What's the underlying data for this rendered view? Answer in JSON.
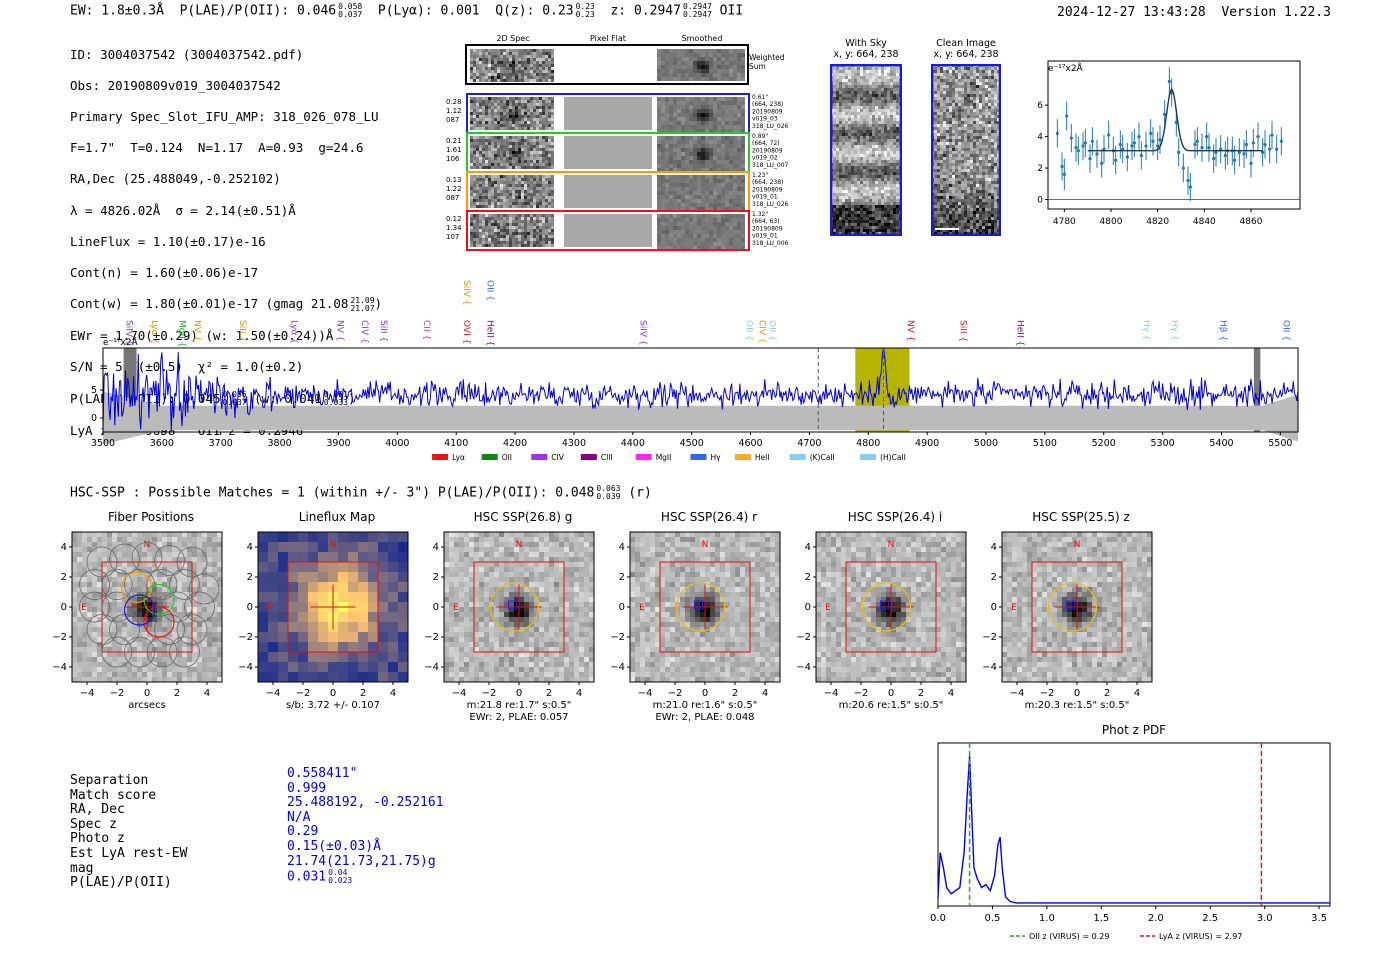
{
  "header": {
    "ew": "EW: 1.8±0.3Å",
    "plae_label": "P(LAE)/P(OII): 0.046",
    "plae_hi": "0.058",
    "plae_lo": "0.037",
    "plya": "P(Lyα): 0.001",
    "qz_label": "Q(z): 0.23",
    "qz_hi": "0.23",
    "qz_lo": "0.23",
    "z_label": "z: 0.2947",
    "z_hi": "0.2947",
    "z_lo": "0.2947",
    "z_line": "OII",
    "datetime": "2024-12-27 13:43:28",
    "version": "Version 1.22.3"
  },
  "info": {
    "id": "ID: 3004037542 (3004037542.pdf)",
    "obs": "Obs: 20190809v019_3004037542",
    "primary": "Primary Spec_Slot_IFU_AMP: 318_026_078_LU",
    "params": "F=1.7\"  T=0.124  N=1.17  A=0.93  g=24.6",
    "radec": "RA,Dec (25.488049,-0.252102)",
    "lambda": "λ = 4826.02Å  σ = 2.14(±0.51)Å",
    "lineflux": "LineFlux = 1.10(±0.17)e-16",
    "contn": "Cont(n) = 1.60(±0.06)e-17",
    "contw_label": "Cont(w) = 1.80(±0.01)e-17 (gmag 21.08",
    "contw_hi": "21.09",
    "contw_lo": "21.07",
    "contw_close": ")",
    "ewr": "EWr = 1.70(±0.29) (w: 1.50(±0.24))Å",
    "sn": "S/N = 5.7(±0.5)  χ² = 1.0(±0.2)",
    "plae_label": "P(LAE)/P(OII): 0.045",
    "plae_hi": "0.056",
    "plae_lo": "0.037",
    "plae_w": "(w: 0.041",
    "plae_w_hi": "0.051",
    "plae_w_lo": "0.033",
    "plae_w_close": ")",
    "lyaz": "LyA z = 2.9698   OII z = 0.2946"
  },
  "fiber_panel": {
    "col_2d": "2D Spec",
    "col_flat": "Pixel Flat",
    "col_smooth": "Smoothed",
    "weighted_label": "Weighted\nSum",
    "rows": [
      {
        "left": "0.28\n1.12\n087",
        "right": "0.61\"\n(664, 238)\n20190809\nv019_03\n318_LU_026",
        "color": "#1f1fd6"
      },
      {
        "left": "0.21\n1.61\n106",
        "right": "0.89\"\n(664, 72)\n20190809\nv019_02\n318_LU_007",
        "color": "#22cc22"
      },
      {
        "left": "0.13\n1.22\n087",
        "right": "1.23\"\n(664, 238)\n20190809\nv019_01\n318_LU_026",
        "color": "#ff9900"
      },
      {
        "left": "0.12\n1.34\n107",
        "right": "1.32\"\n(664, 63)\n20190809\nv019_01\n318_LU_006",
        "color": "#ee1111"
      }
    ]
  },
  "cutouts": {
    "sky_title": "With Sky",
    "sky_coord": "x, y: 664, 238",
    "clean_title": "Clean Image",
    "clean_coord": "x, y: 664, 238"
  },
  "zoom_fit_chart": {
    "ylabel_tag": "e⁻¹⁷x2Å"
  },
  "chart_data": [
    {
      "type": "scatter",
      "title": "emission line zoom fit",
      "unit_label": "e⁻¹⁷x2Å",
      "x": [
        4777,
        4779,
        4780,
        4781,
        4783,
        4785,
        4786,
        4788,
        4789,
        4791,
        4792,
        4794,
        4796,
        4797,
        4799,
        4801,
        4802,
        4804,
        4805,
        4807,
        4809,
        4810,
        4812,
        4813,
        4815,
        4817,
        4818,
        4820,
        4821,
        4823,
        4825,
        4826,
        4828,
        4829,
        4831,
        4833,
        4834,
        4836,
        4837,
        4839,
        4841,
        4842,
        4844,
        4845,
        4847,
        4849,
        4850,
        4852,
        4853,
        4855,
        4857,
        4858,
        4860,
        4861,
        4863,
        4865,
        4866,
        4868,
        4869,
        4871,
        4873
      ],
      "y": [
        4.2,
        2.1,
        1.6,
        5.3,
        3.9,
        3.3,
        3.1,
        3.4,
        3.6,
        2.6,
        3.7,
        2.9,
        2.3,
        3.2,
        4.1,
        3.1,
        2.5,
        3.5,
        3.2,
        2.7,
        3.4,
        3.6,
        4.0,
        2.8,
        3.4,
        4.2,
        3.7,
        3.4,
        3.8,
        5.4,
        7.5,
        6.8,
        4.9,
        3.0,
        2.0,
        1.2,
        0.8,
        3.5,
        3.7,
        3.3,
        4.0,
        3.3,
        2.6,
        3.0,
        3.2,
        2.8,
        3.1,
        3.1,
        2.5,
        3.0,
        2.9,
        3.5,
        2.3,
        3.6,
        4.0,
        3.0,
        3.5,
        3.2,
        4.1,
        3.2,
        3.7
      ],
      "yerr": [
        0.9,
        0.9,
        1.0,
        0.9,
        0.9,
        0.9,
        0.9,
        0.9,
        0.9,
        0.9,
        0.9,
        0.9,
        0.9,
        0.9,
        0.9,
        0.9,
        0.9,
        0.9,
        0.9,
        0.9,
        0.9,
        0.9,
        0.9,
        0.9,
        0.9,
        0.9,
        0.9,
        0.9,
        0.9,
        0.9,
        0.9,
        0.9,
        0.9,
        0.9,
        0.9,
        0.9,
        0.9,
        0.9,
        0.9,
        0.9,
        0.9,
        0.9,
        0.9,
        0.9,
        0.9,
        0.9,
        0.9,
        0.9,
        0.9,
        0.9,
        0.9,
        0.9,
        0.9,
        0.9,
        0.9,
        0.9,
        0.9,
        0.9,
        0.9,
        0.9,
        0.9
      ],
      "fit": {
        "continuum": 3.1,
        "center": 4826.0,
        "sigma": 2.14,
        "peak": 7.0
      },
      "xlim": [
        4773,
        4881
      ],
      "ylim": [
        -0.6,
        8.8
      ],
      "xticks": [
        "4780",
        "4800",
        "4820",
        "4840",
        "4860"
      ],
      "xtick_values": [
        4780,
        4800,
        4820,
        4840,
        4860
      ],
      "yticks": [
        "0",
        "2",
        "4",
        "6"
      ],
      "ytick_values": [
        0,
        2,
        4,
        6
      ]
    },
    {
      "type": "line",
      "title": "full spectrum",
      "unit_label": "e⁻¹⁷x2Å",
      "xlim": [
        3500,
        5530
      ],
      "ylim": [
        -2.5,
        12.5
      ],
      "xticks": [
        "3500",
        "3600",
        "3700",
        "3800",
        "3900",
        "4000",
        "4100",
        "4200",
        "4300",
        "4400",
        "4500",
        "4600",
        "4700",
        "4800",
        "4900",
        "5000",
        "5100",
        "5200",
        "5300",
        "5400",
        "5500"
      ],
      "xtick_values": [
        3500,
        3600,
        3700,
        3800,
        3900,
        4000,
        4100,
        4200,
        4300,
        4400,
        4500,
        4600,
        4700,
        4800,
        4900,
        5000,
        5100,
        5200,
        5300,
        5400,
        5500
      ],
      "yticks": [
        "0",
        "5"
      ],
      "ytick_values": [
        0,
        5
      ],
      "series": [
        {
          "name": "spectrum",
          "color": "#0000dd",
          "continuum": 4.2,
          "noise": 1.6,
          "emission_center": 4826,
          "emission_peak": 8.5
        },
        {
          "name": "error",
          "color": "#bbbbbb",
          "level": 2.2
        }
      ],
      "highlight_band": [
        4778,
        4870
      ],
      "gray_bands": [
        [
          3535,
          3557
        ],
        [
          5455,
          5466
        ]
      ],
      "dashed_lines": [
        4715,
        4826
      ],
      "line_labels": [
        {
          "name": "SiIV",
          "wave": 3535,
          "color": "#9933cc",
          "tier": 1
        },
        {
          "name": "Lyα",
          "wave": 3578,
          "color": "#cc9900",
          "tier": 1
        },
        {
          "name": "MgII",
          "wave": 3625,
          "color": "#22aa22",
          "tier": 1
        },
        {
          "name": "NV",
          "wave": 3650,
          "color": "#dd9900",
          "tier": 1
        },
        {
          "name": "SiII",
          "wave": 3728,
          "color": "#dd9900",
          "tier": 1
        },
        {
          "name": "Lyα",
          "wave": 3815,
          "color": "#9933cc",
          "tier": 1
        },
        {
          "name": "NV",
          "wave": 3893,
          "color": "#9933cc",
          "tier": 1
        },
        {
          "name": "CIV",
          "wave": 3935,
          "color": "#9933cc",
          "tier": 1
        },
        {
          "name": "SiII",
          "wave": 3967,
          "color": "#9933cc",
          "tier": 1
        },
        {
          "name": "CII",
          "wave": 4040,
          "color": "#cc33cc",
          "tier": 1
        },
        {
          "name": "SiIV",
          "wave": 4108,
          "color": "#dd9900",
          "tier": 2
        },
        {
          "name": "OII",
          "wave": 4148,
          "color": "#3366ee",
          "tier": 2
        },
        {
          "name": "OVI",
          "wave": 4108,
          "color": "#ee1111",
          "tier": 1
        },
        {
          "name": "HeII",
          "wave": 4148,
          "color": "#880088",
          "tier": 1
        },
        {
          "name": "SiIV",
          "wave": 4408,
          "color": "#9933cc",
          "tier": 1
        },
        {
          "name": "OII",
          "wave": 4588,
          "color": "#88ccee",
          "tier": 1
        },
        {
          "name": "CIV",
          "wave": 4610,
          "color": "#dd9900",
          "tier": 1
        },
        {
          "name": "OII",
          "wave": 4627,
          "color": "#88ccee",
          "tier": 1
        },
        {
          "name": "NV",
          "wave": 4862,
          "color": "#ee1111",
          "tier": 1
        },
        {
          "name": "SiII",
          "wave": 4952,
          "color": "#ee1111",
          "tier": 1
        },
        {
          "name": "HeII",
          "wave": 5048,
          "color": "#880088",
          "tier": 1
        },
        {
          "name": "Hγ",
          "wave": 5263,
          "color": "#88ccee",
          "tier": 1
        },
        {
          "name": "Hγ",
          "wave": 5311,
          "color": "#88ccee",
          "tier": 1
        },
        {
          "name": "Hβ",
          "wave": 5393,
          "color": "#3366ee",
          "tier": 1
        },
        {
          "name": "OII",
          "wave": 5500,
          "color": "#3366ee",
          "tier": 1
        }
      ],
      "legend": [
        {
          "name": "Lyα",
          "color": "#ee1111"
        },
        {
          "name": "OII",
          "color": "#118811"
        },
        {
          "name": "CIV",
          "color": "#9933ee"
        },
        {
          "name": "CIII",
          "color": "#880088"
        },
        {
          "name": "MgII",
          "color": "#ff22ff"
        },
        {
          "name": "Hγ",
          "color": "#3366ee"
        },
        {
          "name": "HeII",
          "color": "#ffaa22"
        },
        {
          "name": "(K)CaII",
          "color": "#88ccee"
        },
        {
          "name": "(H)CaII",
          "color": "#88ccee"
        }
      ]
    },
    {
      "type": "line",
      "title": "Phot z PDF",
      "xlim": [
        0.0,
        3.6
      ],
      "xticks": [
        "0.0",
        "0.5",
        "1.0",
        "1.5",
        "2.0",
        "2.5",
        "3.0",
        "3.5"
      ],
      "xtick_values": [
        0.0,
        0.5,
        1.0,
        1.5,
        2.0,
        2.5,
        3.0,
        3.5
      ],
      "x": [
        0.0,
        0.02,
        0.05,
        0.08,
        0.12,
        0.16,
        0.2,
        0.24,
        0.27,
        0.29,
        0.31,
        0.33,
        0.36,
        0.4,
        0.44,
        0.48,
        0.52,
        0.55,
        0.57,
        0.59,
        0.62,
        0.66,
        0.72,
        0.8,
        1.0,
        1.5,
        2.0,
        2.5,
        3.0,
        3.5,
        3.6
      ],
      "y": [
        0.05,
        0.35,
        0.25,
        0.12,
        0.08,
        0.1,
        0.12,
        0.35,
        0.75,
        0.98,
        0.6,
        0.25,
        0.18,
        0.12,
        0.14,
        0.1,
        0.2,
        0.4,
        0.45,
        0.25,
        0.06,
        0.03,
        0.02,
        0.02,
        0.02,
        0.02,
        0.02,
        0.02,
        0.02,
        0.02,
        0.02
      ],
      "vlines": [
        {
          "x": 0.29,
          "color": "#22aa22",
          "label": "OII z (VIRUS) = 0.29"
        },
        {
          "x": 2.97,
          "color": "#ee1111",
          "label": "LyA z (VIRUS) = 2.97"
        }
      ]
    }
  ],
  "hsc": {
    "summary_label": "HSC-SSP : Possible Matches = 1 (within +/- 3\")  P(LAE)/P(OII): 0.048",
    "summary_hi": "0.063",
    "summary_lo": "0.039",
    "summary_band": "(r)",
    "axis_ticks": [
      "4",
      "2",
      "0",
      "−2",
      "−4"
    ],
    "x_ticks": [
      "−4",
      "−2",
      "0",
      "2",
      "4"
    ],
    "compass_n": "N",
    "compass_e": "E",
    "panels": [
      {
        "title": "Fiber Positions",
        "caption1": "arcsecs",
        "caption2": "",
        "kind": "fibers"
      },
      {
        "title": "Lineflux Map",
        "caption1": "s/b: 3.72 +/- 0.107",
        "caption2": "",
        "kind": "flux"
      },
      {
        "title": "HSC SSP(26.8) g",
        "caption1": "m:21.8  re:1.7\"  s:0.5\"",
        "caption2": "EWr: 2, PLAE: 0.057",
        "kind": "hsc"
      },
      {
        "title": "HSC SSP(26.4) r",
        "caption1": "m:21.0  re:1.6\"  s:0.5\"",
        "caption2": "EWr: 2, PLAE: 0.048",
        "kind": "hsc"
      },
      {
        "title": "HSC SSP(26.4) i",
        "caption1": "m:20.6  re:1.5\"  s:0.5\"",
        "caption2": "",
        "kind": "hsc"
      },
      {
        "title": "HSC SSP(25.5) z",
        "caption1": "m:20.3  re:1.5\"  s:0.5\"",
        "caption2": "",
        "kind": "hsc"
      }
    ]
  },
  "match": {
    "labels": [
      "Separation",
      "Match score",
      "RA, Dec",
      "Spec z",
      "Photo z",
      "Est LyA rest-EW",
      "mag",
      "P(LAE)/P(OII)"
    ],
    "values": [
      "0.558411\"",
      "0.999",
      "25.488192, -0.252161",
      "N/A",
      "0.29",
      "0.15(±0.03)Å",
      "21.74(21.73,21.75)g",
      "0.031"
    ],
    "plae_hi": "0.04",
    "plae_lo": "0.023"
  },
  "photz": {
    "title": "Phot z PDF",
    "legend_oii": "OII z (VIRUS) = 0.29",
    "legend_lya": "LyA z (VIRUS) = 2.97"
  }
}
